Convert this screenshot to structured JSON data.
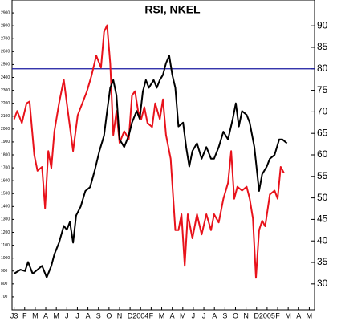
{
  "chart_data": {
    "type": "line",
    "title": "RSI, NKEL",
    "xlim": [
      -0.2,
      28.5
    ],
    "xticks": [
      {
        "value": 0,
        "label": "J3"
      },
      {
        "value": 1,
        "label": "F"
      },
      {
        "value": 2,
        "label": "M"
      },
      {
        "value": 3,
        "label": "A"
      },
      {
        "value": 4,
        "label": "M"
      },
      {
        "value": 5,
        "label": "J"
      },
      {
        "value": 6,
        "label": "J"
      },
      {
        "value": 7,
        "label": "A"
      },
      {
        "value": 8,
        "label": "S"
      },
      {
        "value": 9,
        "label": "O"
      },
      {
        "value": 10,
        "label": "N"
      },
      {
        "value": 11,
        "label": "D"
      },
      {
        "value": 12,
        "label": "2004"
      },
      {
        "value": 13,
        "label": "F"
      },
      {
        "value": 14,
        "label": "M"
      },
      {
        "value": 15,
        "label": "A"
      },
      {
        "value": 16,
        "label": "M"
      },
      {
        "value": 17,
        "label": "J"
      },
      {
        "value": 18,
        "label": "J"
      },
      {
        "value": 19,
        "label": "A"
      },
      {
        "value": 20,
        "label": "S"
      },
      {
        "value": 21,
        "label": "O"
      },
      {
        "value": 22,
        "label": "N"
      },
      {
        "value": 23,
        "label": "D"
      },
      {
        "value": 24,
        "label": "2005"
      },
      {
        "value": 25,
        "label": "F"
      },
      {
        "value": 26,
        "label": "M"
      },
      {
        "value": 27,
        "label": "A"
      },
      {
        "value": 28,
        "label": "M"
      }
    ],
    "ylim": [
      600,
      3000
    ],
    "yticks": [
      700,
      800,
      900,
      1000,
      1100,
      1200,
      1300,
      1400,
      1500,
      1600,
      1700,
      1800,
      1900,
      2000,
      2100,
      2200,
      2300,
      2400,
      2500,
      2600,
      2700,
      2800,
      2900
    ],
    "y2lim": [
      24,
      96
    ],
    "y2ticks": [
      30,
      35,
      40,
      45,
      50,
      55,
      60,
      65,
      70,
      75,
      80,
      85,
      90
    ],
    "hline": {
      "value": 80,
      "axis": "y2",
      "color": "#1a1aa0"
    },
    "series": [
      {
        "name": "RSI",
        "color": "#e8121b",
        "axis": "y2",
        "x": [
          0,
          0.29,
          0.74,
          1.18,
          1.47,
          1.91,
          2.21,
          2.65,
          2.94,
          3.24,
          3.53,
          3.82,
          4.26,
          4.71,
          5.0,
          5.59,
          6.03,
          6.47,
          6.91,
          7.35,
          7.79,
          8.24,
          8.53,
          8.82,
          9.12,
          9.41,
          9.71,
          10.0,
          10.44,
          10.88,
          11.18,
          11.47,
          11.76,
          12.06,
          12.35,
          12.65,
          13.09,
          13.38,
          13.82,
          14.12,
          14.41,
          14.85,
          15.29,
          15.59,
          15.88,
          16.18,
          16.47,
          16.91,
          17.35,
          17.79,
          18.24,
          18.68,
          18.97,
          19.41,
          19.85,
          20.29,
          20.59,
          20.88,
          21.18,
          21.62,
          22.06,
          22.35,
          22.65,
          22.94,
          23.24,
          23.53,
          23.82,
          24.26,
          24.71,
          25.0,
          25.29,
          25.59
        ],
        "values": [
          68.3,
          70.2,
          67.4,
          72.0,
          72.4,
          60.0,
          56.3,
          57.2,
          47.6,
          60.9,
          56.9,
          65.5,
          72.0,
          77.5,
          72.0,
          60.9,
          69.2,
          72.0,
          74.8,
          78.5,
          83.1,
          80.3,
          88.6,
          90.1,
          81.2,
          64.6,
          70.2,
          62.8,
          65.5,
          63.7,
          73.8,
          74.8,
          70.2,
          68.3,
          71.1,
          67.4,
          66.5,
          72.0,
          68.3,
          72.9,
          64.6,
          59.1,
          42.5,
          42.5,
          46.2,
          34.2,
          46.2,
          40.6,
          46.2,
          41.5,
          46.2,
          42.5,
          46.2,
          44.3,
          49.8,
          53.5,
          60.9,
          49.8,
          52.6,
          51.7,
          52.6,
          49.8,
          45.2,
          31.4,
          42.5,
          44.7,
          43.4,
          50.8,
          51.7,
          49.8,
          57.2,
          55.8
        ]
      },
      {
        "name": "NKEL",
        "color": "#000000",
        "x": [
          0,
          0.59,
          1.03,
          1.32,
          1.76,
          2.21,
          2.65,
          3.09,
          3.53,
          3.82,
          4.26,
          4.71,
          5.0,
          5.29,
          5.59,
          5.88,
          6.32,
          6.76,
          7.21,
          7.65,
          8.09,
          8.53,
          8.82,
          9.12,
          9.41,
          9.71,
          10.0,
          10.44,
          10.88,
          11.18,
          11.62,
          11.91,
          12.21,
          12.5,
          12.79,
          13.24,
          13.53,
          13.82,
          14.12,
          14.41,
          14.71,
          15.0,
          15.29,
          15.59,
          16.03,
          16.32,
          16.62,
          16.91,
          17.35,
          17.79,
          18.24,
          18.68,
          18.97,
          19.41,
          19.85,
          20.29,
          20.74,
          21.03,
          21.32,
          21.62,
          22.06,
          22.35,
          22.79,
          23.24,
          23.53,
          23.97,
          24.26,
          24.71,
          25.15,
          25.44,
          25.88
        ],
        "values": [
          880,
          910,
          900,
          970,
          880,
          910,
          940,
          850,
          940,
          1030,
          1120,
          1250,
          1220,
          1280,
          1120,
          1330,
          1400,
          1520,
          1550,
          1680,
          1830,
          1950,
          2140,
          2320,
          2380,
          2260,
          1920,
          1860,
          1950,
          2050,
          2140,
          2080,
          2290,
          2380,
          2320,
          2380,
          2320,
          2380,
          2420,
          2510,
          2570,
          2420,
          2320,
          2020,
          2050,
          1860,
          1710,
          1830,
          1890,
          1770,
          1860,
          1770,
          1770,
          1860,
          1980,
          1920,
          2080,
          2200,
          2020,
          2140,
          2110,
          2050,
          1860,
          1520,
          1650,
          1710,
          1770,
          1800,
          1920,
          1920,
          1890
        ]
      }
    ]
  }
}
